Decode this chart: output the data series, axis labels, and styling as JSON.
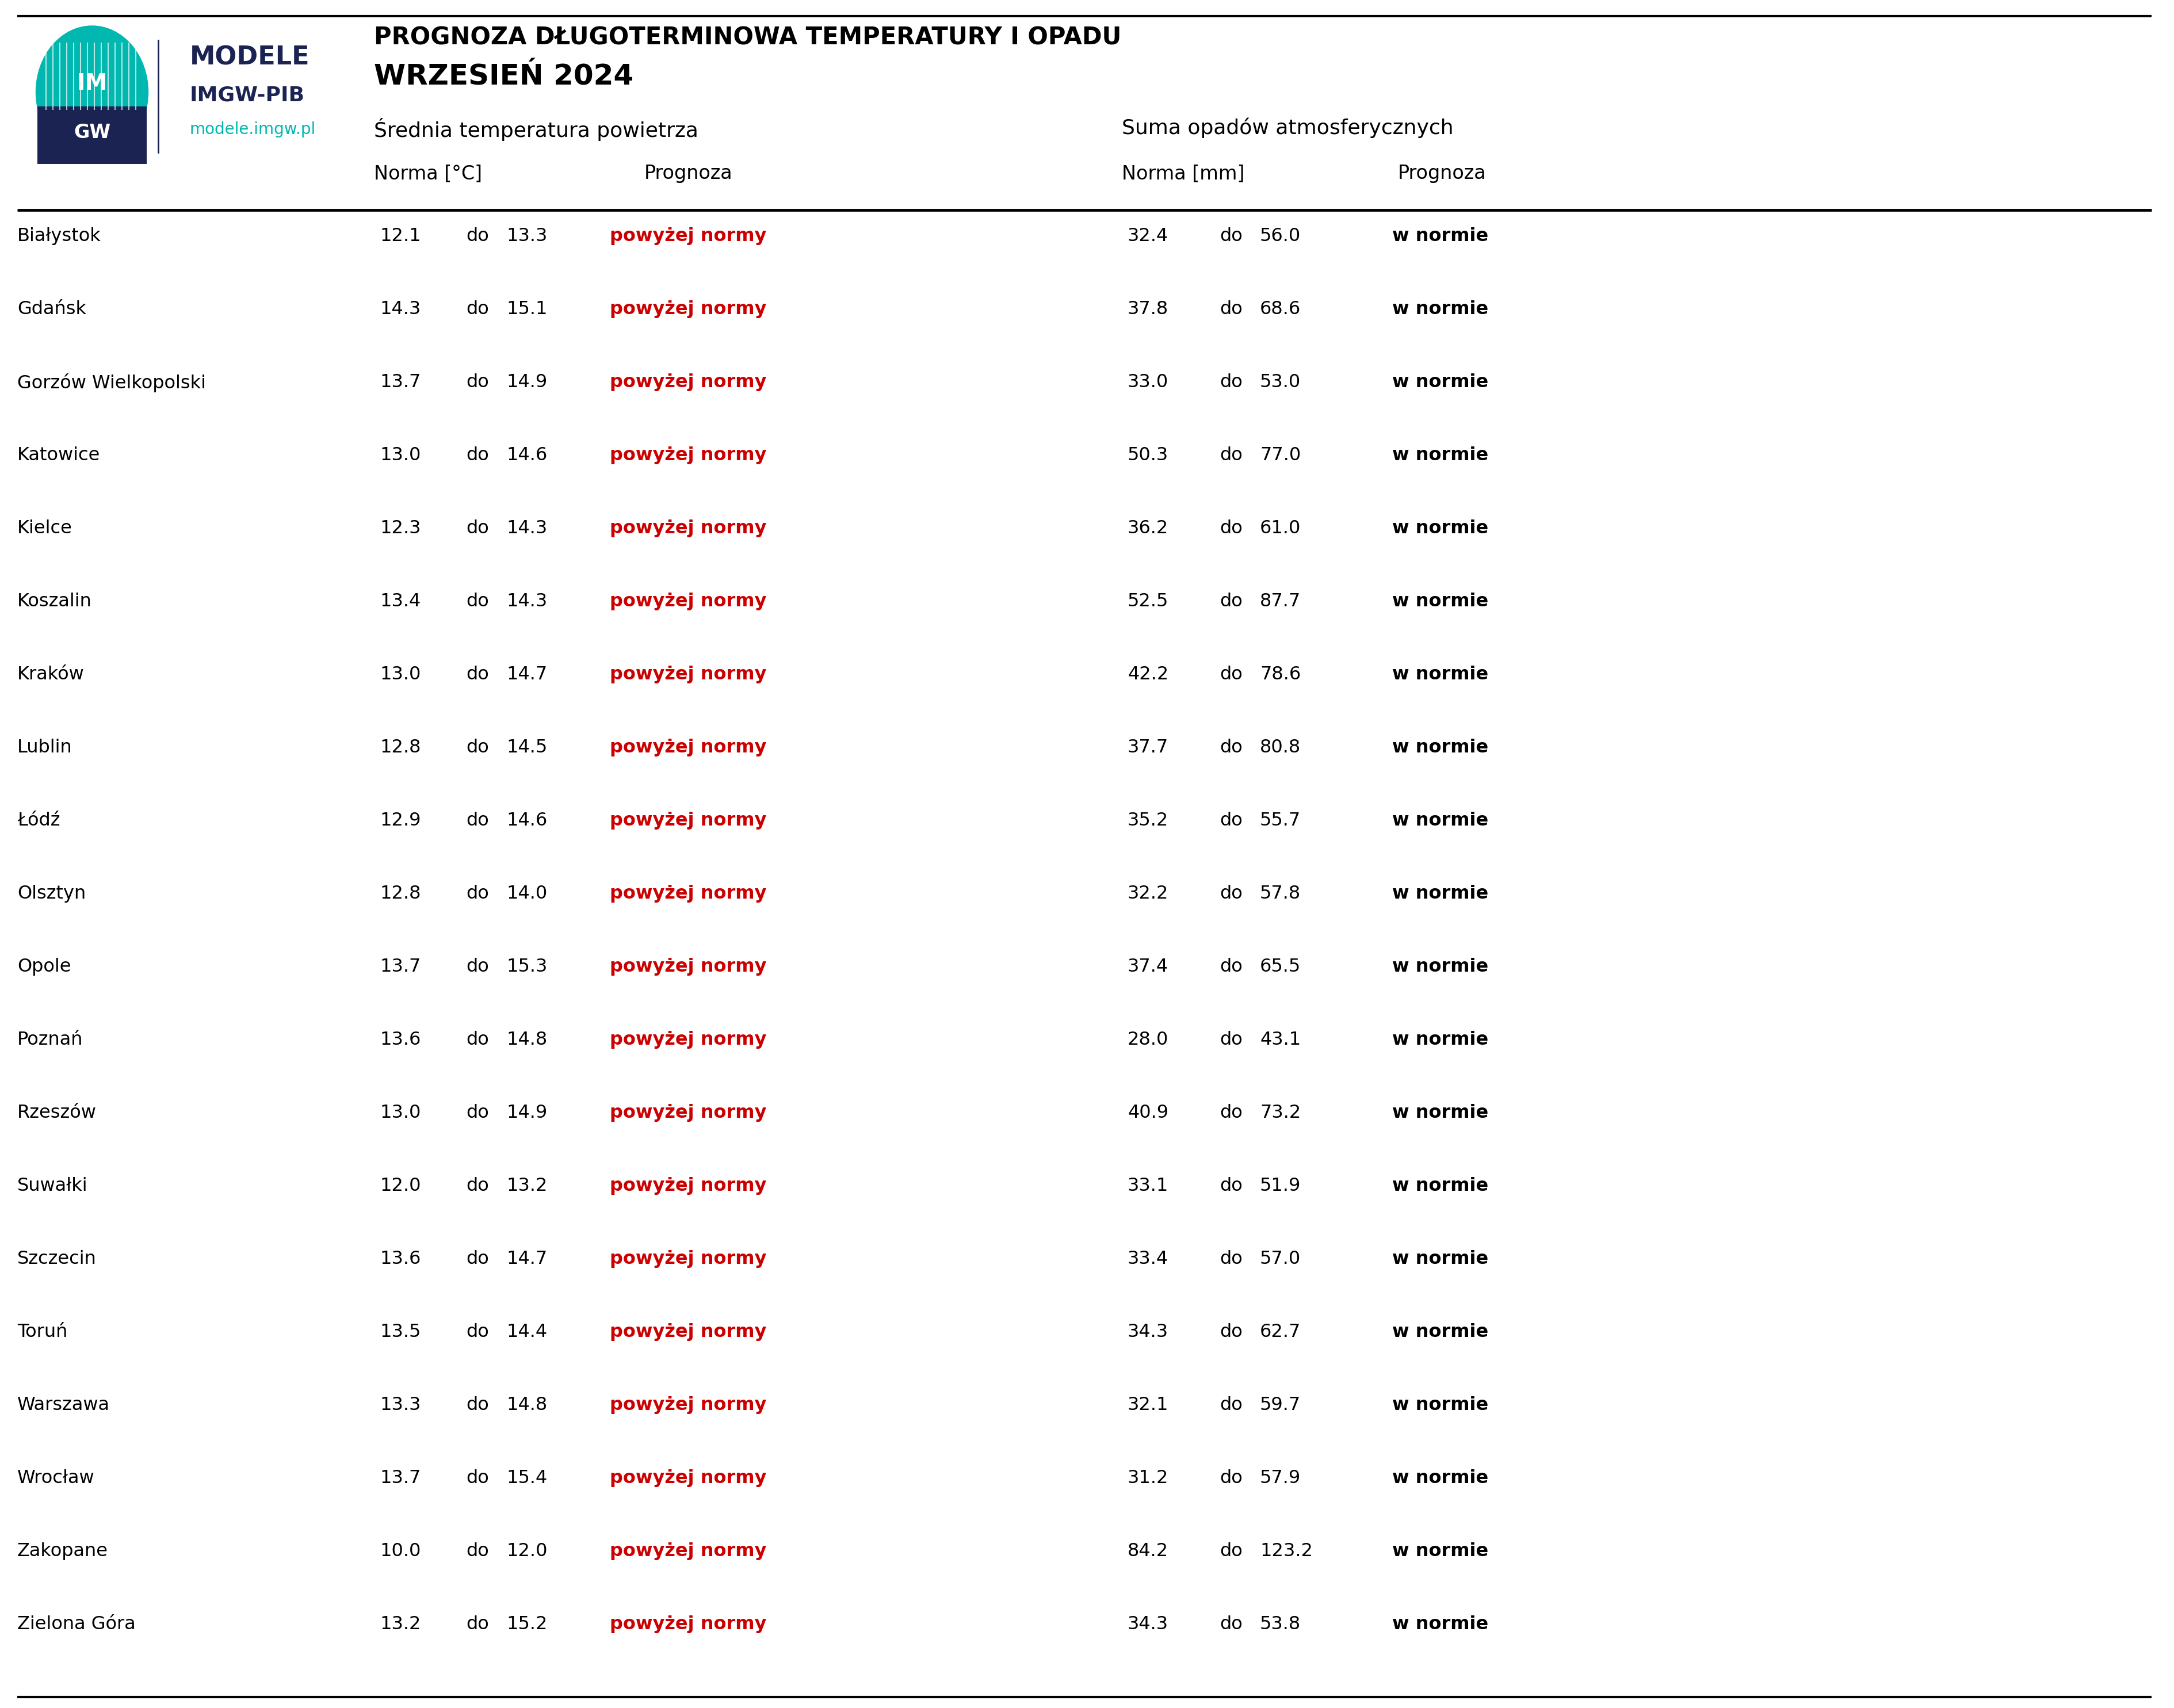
{
  "title_line1": "PROGNOZA DŁUGOTERMINOWA TEMPERATURY I OPADU",
  "title_line2": "WRZESIEŃ 2024",
  "section_header1": "Średnia temperatura powietrza",
  "section_header2": "Suma opadów atmosferycznych",
  "col_header_norm_temp": "Norma [°C]",
  "col_header_prognoza": "Prognoza",
  "col_header_norm_prec": "Norma [mm]",
  "cities": [
    "Białystok",
    "Gdańsk",
    "Gorzów Wielkopolski",
    "Katowice",
    "Kielce",
    "Koszalin",
    "Kraków",
    "Lublin",
    "Łódź",
    "Olsztyn",
    "Opole",
    "Poznań",
    "Rzeszów",
    "Suwałki",
    "Szczecin",
    "Toruń",
    "Warszawa",
    "Wrocław",
    "Zakopane",
    "Zielona Góra"
  ],
  "temp_norm_low": [
    12.1,
    14.3,
    13.7,
    13.0,
    12.3,
    13.4,
    13.0,
    12.8,
    12.9,
    12.8,
    13.7,
    13.6,
    13.0,
    12.0,
    13.6,
    13.5,
    13.3,
    13.7,
    10.0,
    13.2
  ],
  "temp_norm_high": [
    13.3,
    15.1,
    14.9,
    14.6,
    14.3,
    14.3,
    14.7,
    14.5,
    14.6,
    14.0,
    15.3,
    14.8,
    14.9,
    13.2,
    14.7,
    14.4,
    14.8,
    15.4,
    12.0,
    15.2
  ],
  "temp_prognoza": [
    "powyżej normy",
    "powyżej normy",
    "powyżej normy",
    "powyżej normy",
    "powyżej normy",
    "powyżej normy",
    "powyżej normy",
    "powyżej normy",
    "powyżej normy",
    "powyżej normy",
    "powyżej normy",
    "powyżej normy",
    "powyżej normy",
    "powyżej normy",
    "powyżej normy",
    "powyżej normy",
    "powyżej normy",
    "powyżej normy",
    "powyżej normy",
    "powyżej normy"
  ],
  "precip_norm_low": [
    32.4,
    37.8,
    33.0,
    50.3,
    36.2,
    52.5,
    42.2,
    37.7,
    35.2,
    32.2,
    37.4,
    28.0,
    40.9,
    33.1,
    33.4,
    34.3,
    32.1,
    31.2,
    84.2,
    34.3
  ],
  "precip_norm_high": [
    56.0,
    68.6,
    53.0,
    77.0,
    61.0,
    87.7,
    78.6,
    80.8,
    55.7,
    57.8,
    65.5,
    43.1,
    73.2,
    51.9,
    57.0,
    62.7,
    59.7,
    57.9,
    123.2,
    53.8
  ],
  "precip_prognoza": [
    "w normie",
    "w normie",
    "w normie",
    "w normie",
    "w normie",
    "w normie",
    "w normie",
    "w normie",
    "w normie",
    "w normie",
    "w normie",
    "w normie",
    "w normie",
    "w normie",
    "w normie",
    "w normie",
    "w normie",
    "w normie",
    "w normie",
    "w normie"
  ],
  "temp_prognoza_color": "#cc0000",
  "precip_prognoza_color": "#000000",
  "background_color": "#ffffff",
  "logo_teal": "#00b8b0",
  "logo_navy": "#1a2352",
  "logo_cyan_text": "#00b8b0",
  "do_word": "do"
}
